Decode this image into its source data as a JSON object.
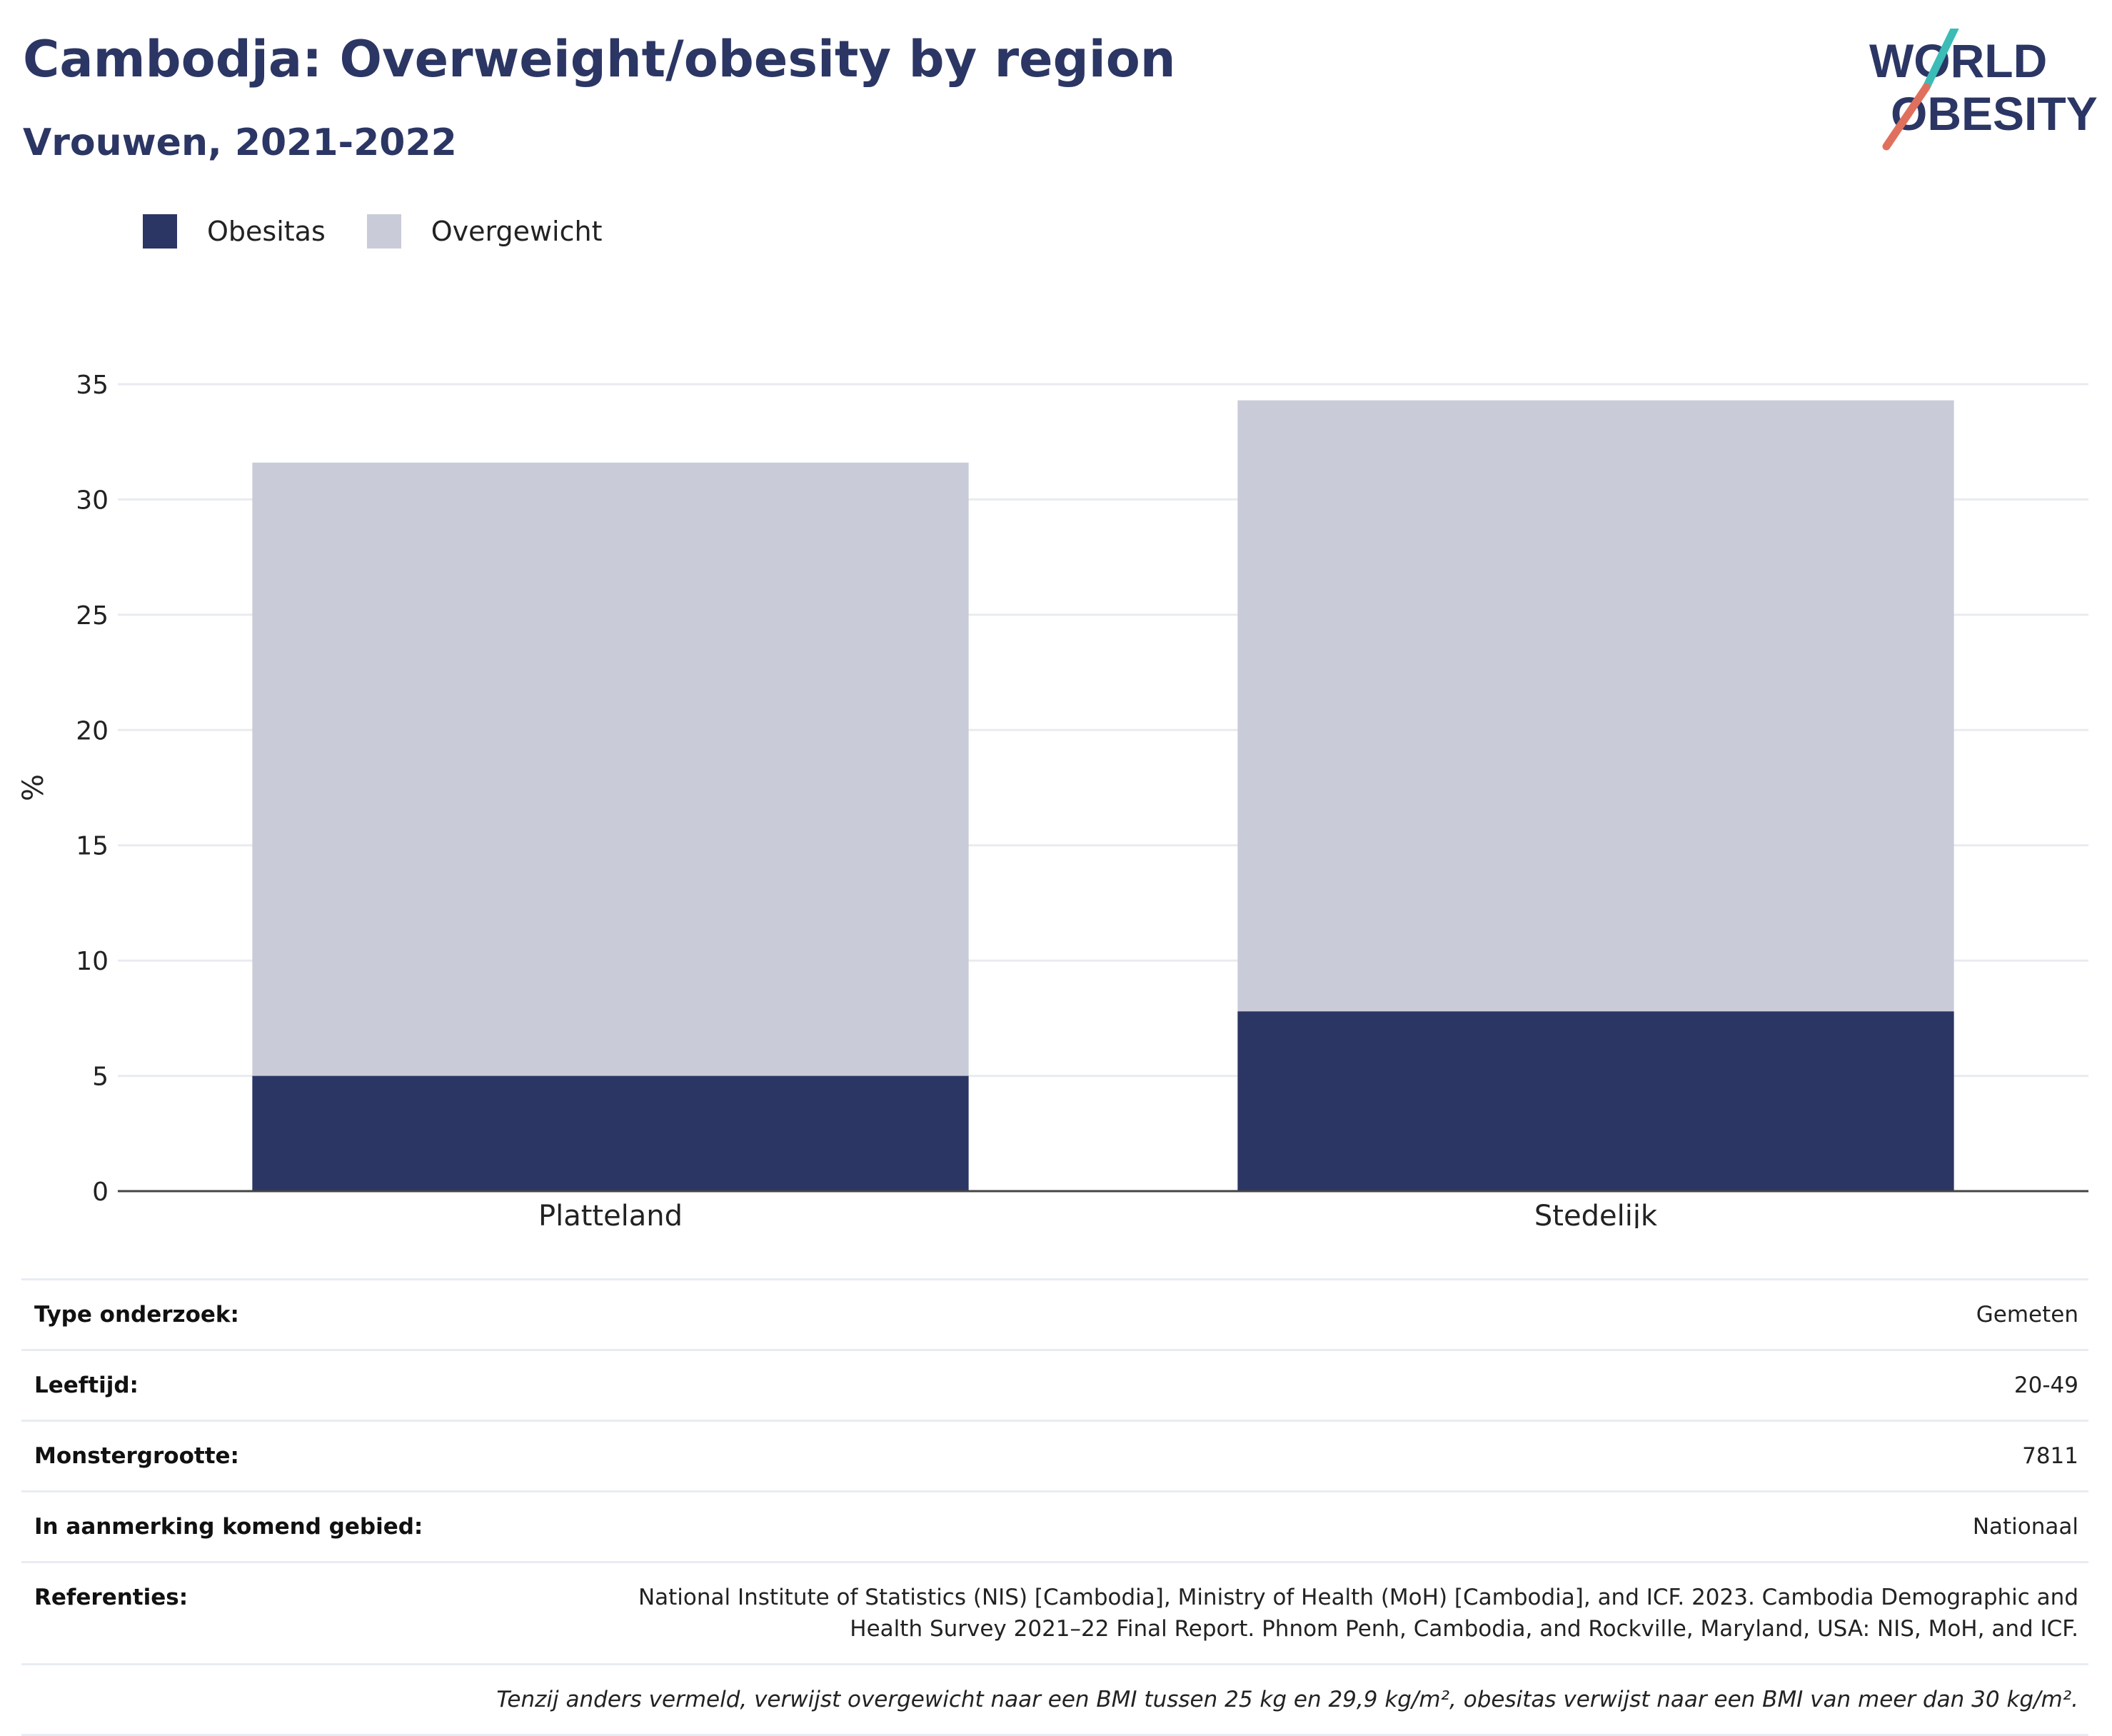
{
  "header": {
    "title": "Cambodja: Overweight/obesity by region",
    "subtitle": "Vrouwen, 2021-2022"
  },
  "logo": {
    "line1": "WORLD",
    "line2": "OBESITY",
    "colors": {
      "text": "#2b3664",
      "slash_top": "#3bbcb6",
      "slash_bottom": "#e0705e"
    }
  },
  "legend": [
    {
      "label": "Obesitas",
      "color": "#2b3664"
    },
    {
      "label": "Overgewicht",
      "color": "#c9ccd8"
    }
  ],
  "chart_data": {
    "type": "bar",
    "stacked": true,
    "categories": [
      "Platteland",
      "Stedelijk"
    ],
    "series": [
      {
        "name": "Obesitas",
        "color": "#2b3664",
        "values": [
          5.0,
          7.8
        ]
      },
      {
        "name": "Overgewicht",
        "color": "#c9ccd8",
        "values": [
          26.6,
          26.5
        ]
      }
    ],
    "ylabel": "%",
    "xlabel": "",
    "ylim": [
      0,
      35
    ],
    "yticks": [
      0,
      5,
      10,
      15,
      20,
      25,
      30,
      35
    ],
    "grid": true,
    "legend_position": "top-left"
  },
  "metadata": [
    {
      "label": "Type onderzoek:",
      "value": "Gemeten"
    },
    {
      "label": "Leeftijd:",
      "value": "20-49"
    },
    {
      "label": "Monstergrootte:",
      "value": "7811"
    },
    {
      "label": "In aanmerking komend gebied:",
      "value": "Nationaal"
    },
    {
      "label": "Referenties:",
      "value": "National Institute of Statistics (NIS) [Cambodia], Ministry of Health (MoH) [Cambodia], and ICF. 2023. Cambodia Demographic and Health Survey 2021–22 Final Report. Phnom Penh, Cambodia, and Rockville, Maryland, USA: NIS, MoH, and ICF."
    }
  ],
  "note": "Tenzij anders vermeld, verwijst overgewicht naar een BMI tussen 25 kg en 29,9 kg/m², obesitas verwijst naar een BMI van meer dan 30 kg/m²."
}
